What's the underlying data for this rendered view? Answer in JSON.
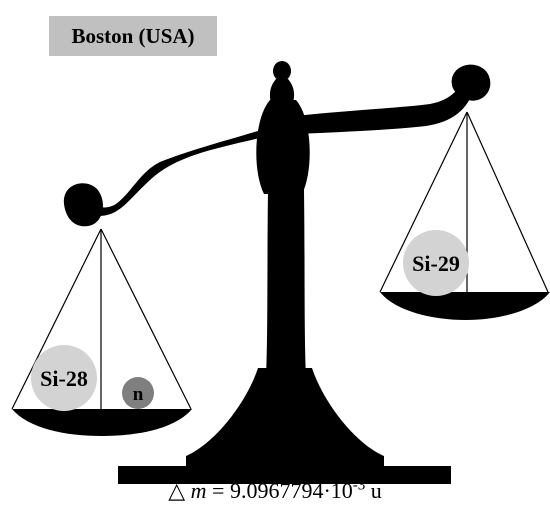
{
  "location_label": "Boston (USA)",
  "left_pan": {
    "samples": [
      {
        "label": "Si-28"
      },
      {
        "label": "n"
      }
    ]
  },
  "right_pan": {
    "samples": [
      {
        "label": "Si-29"
      }
    ]
  },
  "mass_difference": {
    "delta_symbol": "△",
    "variable": "m",
    "equals": " = ",
    "mantissa": "9.0967794·10",
    "exponent": "-3",
    "unit": " u"
  },
  "colors": {
    "balance": "#000000",
    "badge_background": "#c0c0c0",
    "atom_fill": "#d3d3d3",
    "neutron_fill": "#7f7f7f"
  }
}
